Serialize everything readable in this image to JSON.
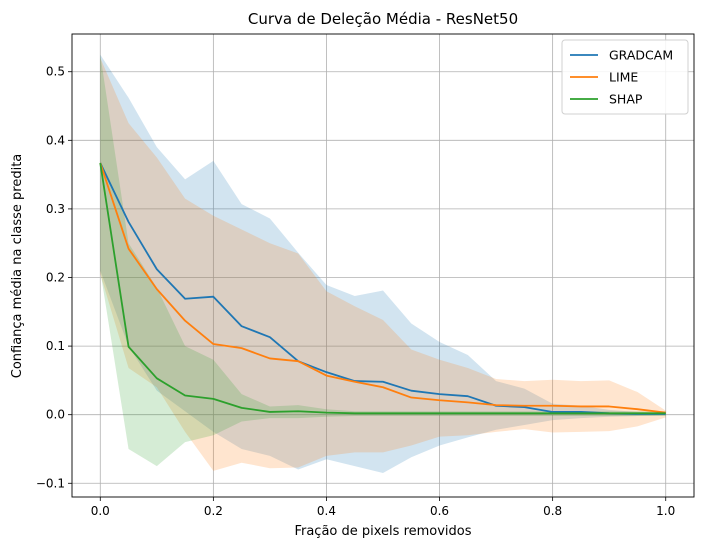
{
  "chart_data": {
    "type": "line",
    "title": "Curva de Deleção Média - ResNet50",
    "xlabel": "Fração de pixels removidos",
    "ylabel": "Confiança média na classe predita",
    "xlim": [
      -0.05,
      1.05
    ],
    "ylim": [
      -0.12,
      0.555
    ],
    "xticks": [
      0.0,
      0.2,
      0.4,
      0.6,
      0.8,
      1.0
    ],
    "xtick_labels": [
      "0.0",
      "0.2",
      "0.4",
      "0.6",
      "0.8",
      "1.0"
    ],
    "yticks": [
      -0.1,
      0.0,
      0.1,
      0.2,
      0.3,
      0.4,
      0.5
    ],
    "ytick_labels": [
      "−0.1",
      "0.0",
      "0.1",
      "0.2",
      "0.3",
      "0.4",
      "0.5"
    ],
    "grid": true,
    "legend_position": "top-right",
    "x": [
      0.0,
      0.05,
      0.1,
      0.15,
      0.2,
      0.25,
      0.3,
      0.35,
      0.4,
      0.45,
      0.5,
      0.55,
      0.6,
      0.65,
      0.7,
      0.75,
      0.8,
      0.85,
      0.9,
      0.95,
      1.0
    ],
    "series": [
      {
        "name": "GRADCAM",
        "color": "#1f77b4",
        "values": [
          0.367,
          0.281,
          0.212,
          0.169,
          0.172,
          0.129,
          0.113,
          0.078,
          0.062,
          0.049,
          0.048,
          0.035,
          0.03,
          0.027,
          0.013,
          0.011,
          0.004,
          0.004,
          0.002,
          0.001,
          0.001
        ],
        "lower": [
          0.21,
          0.1,
          0.035,
          0.005,
          -0.025,
          -0.05,
          -0.06,
          -0.08,
          -0.065,
          -0.075,
          -0.085,
          -0.062,
          -0.045,
          -0.033,
          -0.022,
          -0.015,
          -0.008,
          -0.005,
          -0.003,
          -0.002,
          -0.001
        ],
        "upper": [
          0.525,
          0.462,
          0.39,
          0.343,
          0.37,
          0.307,
          0.286,
          0.236,
          0.189,
          0.173,
          0.181,
          0.133,
          0.106,
          0.087,
          0.049,
          0.038,
          0.016,
          0.013,
          0.007,
          0.004,
          0.003
        ]
      },
      {
        "name": "LIME",
        "color": "#ff7f0e",
        "values": [
          0.367,
          0.242,
          0.183,
          0.137,
          0.103,
          0.097,
          0.082,
          0.078,
          0.057,
          0.048,
          0.04,
          0.025,
          0.021,
          0.018,
          0.014,
          0.013,
          0.013,
          0.012,
          0.012,
          0.008,
          0.003
        ],
        "lower": [
          0.205,
          0.068,
          0.04,
          -0.025,
          -0.082,
          -0.07,
          -0.078,
          -0.077,
          -0.06,
          -0.055,
          -0.055,
          -0.045,
          -0.032,
          -0.03,
          -0.025,
          -0.021,
          -0.026,
          -0.025,
          -0.024,
          -0.017,
          -0.004
        ],
        "upper": [
          0.52,
          0.425,
          0.375,
          0.315,
          0.29,
          0.27,
          0.25,
          0.235,
          0.18,
          0.158,
          0.138,
          0.095,
          0.08,
          0.068,
          0.052,
          0.049,
          0.051,
          0.049,
          0.05,
          0.033,
          0.006
        ]
      },
      {
        "name": "SHAP",
        "color": "#2ca02c",
        "values": [
          0.367,
          0.099,
          0.053,
          0.028,
          0.023,
          0.01,
          0.004,
          0.005,
          0.003,
          0.002,
          0.002,
          0.002,
          0.002,
          0.002,
          0.002,
          0.002,
          0.002,
          0.002,
          0.002,
          0.002,
          0.002
        ],
        "lower": [
          0.21,
          -0.05,
          -0.075,
          -0.04,
          -0.03,
          -0.01,
          -0.005,
          -0.005,
          -0.003,
          -0.002,
          -0.002,
          -0.002,
          -0.002,
          -0.002,
          -0.002,
          -0.002,
          -0.002,
          -0.002,
          -0.002,
          -0.002,
          -0.002
        ],
        "upper": [
          0.525,
          0.25,
          0.185,
          0.1,
          0.08,
          0.03,
          0.012,
          0.014,
          0.008,
          0.005,
          0.005,
          0.005,
          0.005,
          0.005,
          0.005,
          0.005,
          0.005,
          0.005,
          0.005,
          0.005,
          0.005
        ]
      }
    ]
  }
}
